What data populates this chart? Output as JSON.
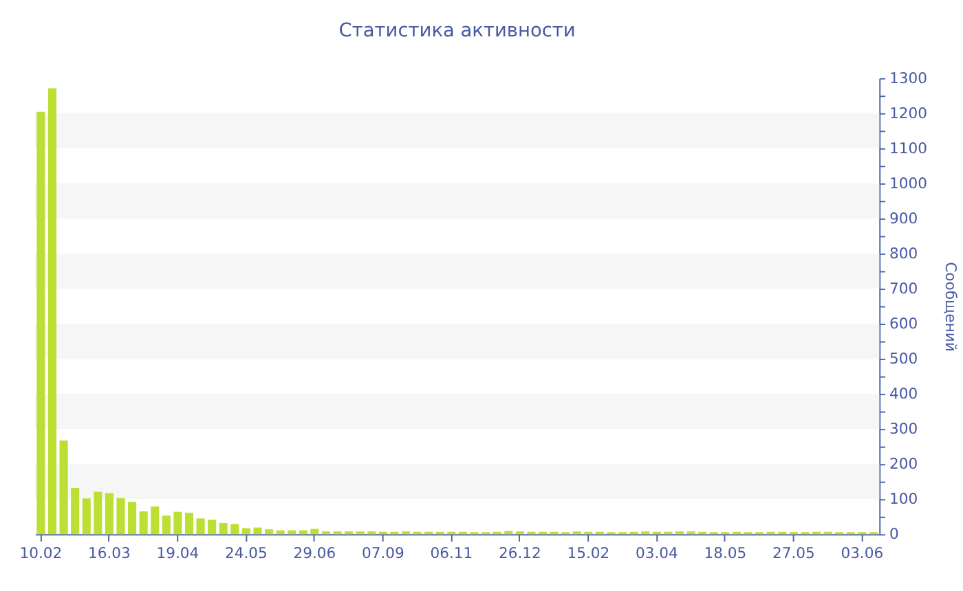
{
  "chart_data": {
    "type": "bar",
    "title": "Статистика активности",
    "ylabel": "Сообщений",
    "categories": [
      "10.02",
      null,
      null,
      null,
      null,
      null,
      "16.03",
      null,
      null,
      null,
      null,
      null,
      "19.04",
      null,
      null,
      null,
      null,
      null,
      "24.05",
      null,
      null,
      null,
      null,
      null,
      "29.06",
      null,
      null,
      null,
      null,
      null,
      "07.09",
      null,
      null,
      null,
      null,
      null,
      "06.11",
      null,
      null,
      null,
      null,
      null,
      "26.12",
      null,
      null,
      null,
      null,
      null,
      "15.02",
      null,
      null,
      null,
      null,
      null,
      "03.04",
      null,
      null,
      null,
      null,
      null,
      "18.05",
      null,
      null,
      null,
      null,
      null,
      "27.05",
      null,
      null,
      null,
      null,
      null,
      "03.06",
      null
    ],
    "values": [
      1204,
      1271,
      267,
      132,
      102,
      121,
      117,
      103,
      92,
      65,
      79,
      53,
      64,
      61,
      45,
      41,
      32,
      29,
      17,
      19,
      14,
      11,
      11,
      11,
      15,
      8,
      8,
      8,
      8,
      8,
      7,
      7,
      8,
      7,
      7,
      7,
      7,
      7,
      6,
      6,
      7,
      9,
      8,
      7,
      7,
      7,
      6,
      8,
      7,
      7,
      6,
      6,
      7,
      8,
      7,
      7,
      8,
      8,
      7,
      6,
      6,
      7,
      6,
      6,
      7,
      7,
      6,
      6,
      7,
      7,
      6,
      6,
      6,
      6
    ],
    "color": "#bbdf32",
    "ylim": [
      0,
      1300
    ],
    "yticks": [
      0,
      {
        "value": 50,
        "label": null
      },
      100,
      {
        "value": 150,
        "label": null
      },
      200,
      {
        "value": 250,
        "label": null
      },
      300,
      {
        "value": 350,
        "label": null
      },
      400,
      {
        "value": 450,
        "label": null
      },
      500,
      {
        "value": 550,
        "label": null
      },
      600,
      {
        "value": 650,
        "label": null
      },
      700,
      {
        "value": 750,
        "label": null
      },
      800,
      {
        "value": 850,
        "label": null
      },
      900,
      {
        "value": 950,
        "label": null
      },
      1000,
      {
        "value": 1050,
        "label": null
      },
      1100,
      {
        "value": 1150,
        "label": null
      },
      1200,
      {
        "value": 1250,
        "label": null
      },
      1300
    ],
    "bands": [
      {
        "axis": "y",
        "from": 100,
        "to": 200,
        "color": "#f6f6f6"
      },
      {
        "axis": "y",
        "from": 300,
        "to": 400,
        "color": "#f6f6f6"
      },
      {
        "axis": "y",
        "from": 500,
        "to": 600,
        "color": "#f6f6f6"
      },
      {
        "axis": "y",
        "from": 700,
        "to": 800,
        "color": "#f6f6f6"
      },
      {
        "axis": "y",
        "from": 900,
        "to": 1000,
        "color": "#f6f6f6"
      },
      {
        "axis": "y",
        "from": 1100,
        "to": 1200,
        "color": "#f6f6f6"
      }
    ]
  }
}
